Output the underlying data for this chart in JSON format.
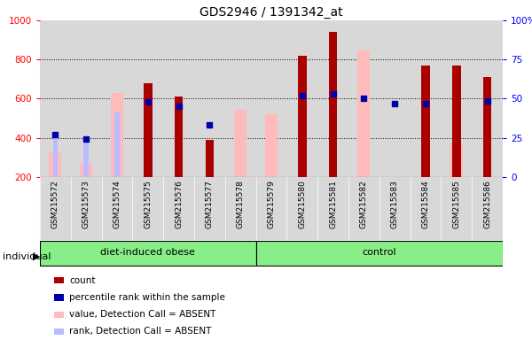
{
  "title": "GDS2946 / 1391342_at",
  "samples": [
    "GSM215572",
    "GSM215573",
    "GSM215574",
    "GSM215575",
    "GSM215576",
    "GSM215577",
    "GSM215578",
    "GSM215579",
    "GSM215580",
    "GSM215581",
    "GSM215582",
    "GSM215583",
    "GSM215584",
    "GSM215585",
    "GSM215586"
  ],
  "groups": {
    "diet-induced obese": [
      0,
      1,
      2,
      3,
      4,
      5,
      6
    ],
    "control": [
      7,
      8,
      9,
      10,
      11,
      12,
      13,
      14
    ]
  },
  "count": [
    null,
    null,
    null,
    680,
    610,
    390,
    null,
    null,
    820,
    940,
    null,
    null,
    770,
    770,
    710
  ],
  "percentile_rank": [
    415,
    395,
    null,
    585,
    560,
    465,
    null,
    null,
    615,
    625,
    600,
    575,
    575,
    null,
    590
  ],
  "value_absent": [
    325,
    270,
    630,
    null,
    null,
    null,
    545,
    520,
    null,
    null,
    845,
    null,
    null,
    375,
    null
  ],
  "rank_absent": [
    415,
    395,
    530,
    null,
    null,
    null,
    null,
    null,
    null,
    null,
    null,
    null,
    null,
    435,
    null
  ],
  "ylim_left": [
    200,
    1000
  ],
  "ylim_right": [
    0,
    100
  ],
  "yticks_left": [
    200,
    400,
    600,
    800,
    1000
  ],
  "yticks_right": [
    0,
    25,
    50,
    75,
    100
  ],
  "bar_bottom": 200,
  "count_color": "#aa0000",
  "percentile_color": "#0000aa",
  "value_absent_color": "#ffbbbb",
  "rank_absent_color": "#bbbbff",
  "group_color": "#88ee88",
  "col_bg_color": "#d8d8d8",
  "plot_bg": "#ffffff",
  "grid_color": "#000000",
  "legend_items": [
    "count",
    "percentile rank within the sample",
    "value, Detection Call = ABSENT",
    "rank, Detection Call = ABSENT"
  ],
  "legend_colors": [
    "#aa0000",
    "#0000aa",
    "#ffbbbb",
    "#bbbbff"
  ]
}
